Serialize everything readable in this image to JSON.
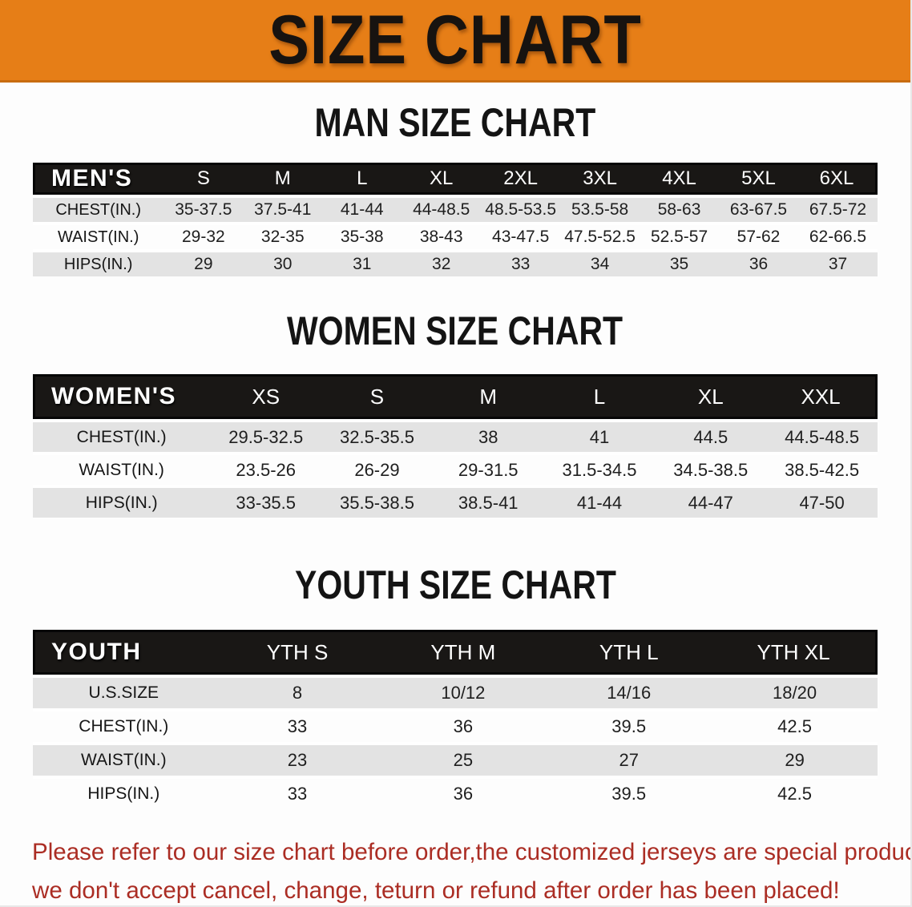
{
  "banner": {
    "title": "SIZE CHART"
  },
  "colors": {
    "banner_bg": "#E67E17",
    "table_header_bg": "#191715",
    "row_stripe": "#E3E3E3",
    "footer_text": "#AB2D24"
  },
  "sections": [
    {
      "heading": "MAN SIZE CHART",
      "table": {
        "header_label": "MEN'S",
        "columns": [
          "S",
          "M",
          "L",
          "XL",
          "2XL",
          "3XL",
          "4XL",
          "5XL",
          "6XL"
        ],
        "rows": [
          {
            "label": "CHEST(IN.)",
            "values": [
              "35-37.5",
              "37.5-41",
              "41-44",
              "44-48.5",
              "48.5-53.5",
              "53.5-58",
              "58-63",
              "63-67.5",
              "67.5-72"
            ]
          },
          {
            "label": "WAIST(IN.)",
            "values": [
              "29-32",
              "32-35",
              "35-38",
              "38-43",
              "43-47.5",
              "47.5-52.5",
              "52.5-57",
              "57-62",
              "62-66.5"
            ]
          },
          {
            "label": "HIPS(IN.)",
            "values": [
              "29",
              "30",
              "31",
              "32",
              "33",
              "34",
              "35",
              "36",
              "37"
            ]
          }
        ]
      }
    },
    {
      "heading": "WOMEN SIZE CHART",
      "table": {
        "header_label": "WOMEN'S",
        "columns": [
          "XS",
          "S",
          "M",
          "L",
          "XL",
          "XXL"
        ],
        "rows": [
          {
            "label": "CHEST(IN.)",
            "values": [
              "29.5-32.5",
              "32.5-35.5",
              "38",
              "41",
              "44.5",
              "44.5-48.5"
            ]
          },
          {
            "label": "WAIST(IN.)",
            "values": [
              "23.5-26",
              "26-29",
              "29-31.5",
              "31.5-34.5",
              "34.5-38.5",
              "38.5-42.5"
            ]
          },
          {
            "label": "HIPS(IN.)",
            "values": [
              "33-35.5",
              "35.5-38.5",
              "38.5-41",
              "41-44",
              "44-47",
              "47-50"
            ]
          }
        ]
      }
    },
    {
      "heading": "YOUTH SIZE CHART",
      "table": {
        "header_label": "YOUTH",
        "columns": [
          "YTH S",
          "YTH M",
          "YTH L",
          "YTH XL"
        ],
        "rows": [
          {
            "label": "U.S.SIZE",
            "values": [
              "8",
              "10/12",
              "14/16",
              "18/20"
            ]
          },
          {
            "label": "CHEST(IN.)",
            "values": [
              "33",
              "36",
              "39.5",
              "42.5"
            ]
          },
          {
            "label": "WAIST(IN.)",
            "values": [
              "23",
              "25",
              "27",
              "29"
            ]
          },
          {
            "label": "HIPS(IN.)",
            "values": [
              "33",
              "36",
              "39.5",
              "42.5"
            ]
          }
        ]
      }
    }
  ],
  "footer": {
    "line1": "Please refer to our size chart before order,the customized jerseys are special products,",
    "line2": "we don't accept cancel, change, teturn or refund after order has been placed!"
  }
}
